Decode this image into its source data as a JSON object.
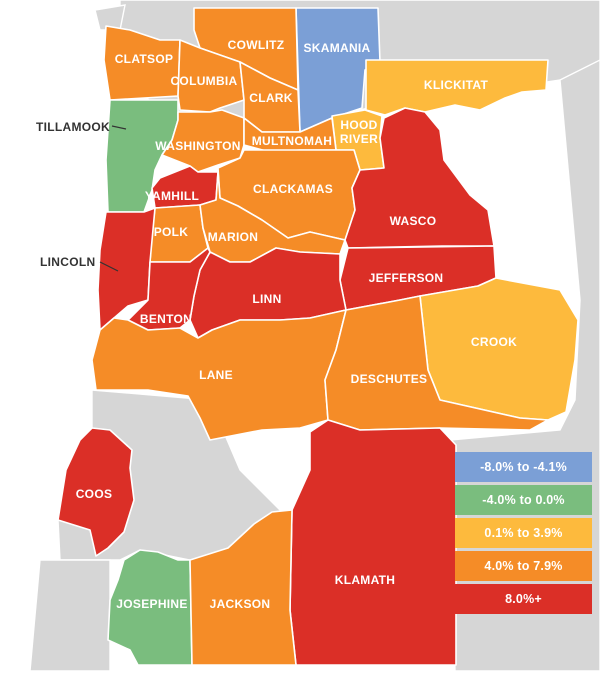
{
  "colors": {
    "blue": "#7b9fd6",
    "green": "#7abd7e",
    "yellow": "#fdba3d",
    "orange": "#f58c27",
    "red": "#db2f27",
    "background_land": "#d6d6d6",
    "water": "#ffffff"
  },
  "legend": [
    {
      "label": "-8.0% to -4.1%",
      "color": "#7b9fd6"
    },
    {
      "label": "-4.0% to 0.0%",
      "color": "#7abd7e"
    },
    {
      "label": "0.1% to 3.9%",
      "color": "#fdba3d"
    },
    {
      "label": "4.0% to 7.9%",
      "color": "#f58c27"
    },
    {
      "label": "8.0%+",
      "color": "#db2f27"
    }
  ],
  "counties": {
    "skamania": "SKAMANIA",
    "cowlitz": "COWLITZ",
    "clatsop": "CLATSOP",
    "columbia": "COLUMBIA",
    "clark": "CLARK",
    "klickitat": "KLICKITAT",
    "tillamook": "TILLAMOOK",
    "hood_river": [
      "HOOD",
      "RIVER"
    ],
    "washington": "WASHINGTON",
    "multnomah": "MULTNOMAH",
    "yamhill": "YAMHILL",
    "clackamas": "CLACKAMAS",
    "wasco": "WASCO",
    "polk": "POLK",
    "marion": "MARION",
    "lincoln": "LINCOLN",
    "jefferson": "JEFFERSON",
    "linn": "LINN",
    "benton": "BENTON",
    "crook": "CROOK",
    "lane": "LANE",
    "deschutes": "DESCHUTES",
    "coos": "COOS",
    "klamath": "KLAMATH",
    "josephine": "JOSEPHINE",
    "jackson": "JACKSON"
  }
}
